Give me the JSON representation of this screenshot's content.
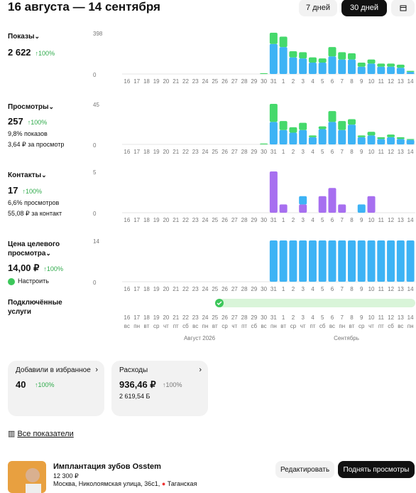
{
  "header": {
    "title": "16 августа — 14 сентября",
    "periods": [
      "7 дней",
      "30 дней"
    ]
  },
  "chart_data": [
    {
      "type": "bar",
      "stacked": true,
      "title": "Показы",
      "total": "2 622",
      "change": "100%",
      "notes": [],
      "categories": [
        "16",
        "17",
        "18",
        "19",
        "20",
        "21",
        "22",
        "23",
        "24",
        "25",
        "26",
        "27",
        "28",
        "29",
        "30",
        "31",
        "1",
        "2",
        "3",
        "4",
        "5",
        "6",
        "7",
        "8",
        "9",
        "10",
        "11",
        "12",
        "13",
        "14"
      ],
      "ylim": [
        0,
        398
      ],
      "yticks": [
        0,
        398
      ],
      "series": [
        {
          "color": "#3db3f5",
          "values": [
            null,
            null,
            null,
            null,
            null,
            null,
            null,
            null,
            null,
            null,
            null,
            null,
            null,
            null,
            0,
            290,
            260,
            160,
            150,
            110,
            110,
            170,
            140,
            140,
            70,
            100,
            70,
            70,
            60,
            20
          ]
        },
        {
          "color": "#45d96b",
          "values": [
            null,
            null,
            null,
            null,
            null,
            null,
            null,
            null,
            null,
            null,
            null,
            null,
            null,
            null,
            8,
            108,
            100,
            60,
            60,
            50,
            40,
            90,
            70,
            60,
            40,
            40,
            30,
            30,
            30,
            10
          ]
        }
      ]
    },
    {
      "type": "bar",
      "stacked": true,
      "title": "Просмотры",
      "total": "257",
      "change": "100%",
      "notes": [
        "9,8% показов",
        "3,64 ₽ за просмотр"
      ],
      "categories": [
        "16",
        "17",
        "18",
        "19",
        "20",
        "21",
        "22",
        "23",
        "24",
        "25",
        "26",
        "27",
        "28",
        "29",
        "30",
        "31",
        "1",
        "2",
        "3",
        "4",
        "5",
        "6",
        "7",
        "8",
        "9",
        "10",
        "11",
        "12",
        "13",
        "14"
      ],
      "ylim": [
        0,
        45
      ],
      "yticks": [
        0,
        45
      ],
      "series": [
        {
          "color": "#3db3f5",
          "values": [
            null,
            null,
            null,
            null,
            null,
            null,
            null,
            null,
            null,
            null,
            null,
            null,
            null,
            null,
            0,
            25,
            16,
            13,
            16,
            8,
            17,
            25,
            16,
            22,
            8,
            10,
            6,
            8,
            6,
            5
          ]
        },
        {
          "color": "#45d96b",
          "values": [
            null,
            null,
            null,
            null,
            null,
            null,
            null,
            null,
            null,
            null,
            null,
            null,
            null,
            null,
            1,
            20,
            10,
            6,
            8,
            2,
            3,
            12,
            10,
            6,
            2,
            4,
            2,
            3,
            2,
            1
          ]
        }
      ]
    },
    {
      "type": "bar",
      "stacked": true,
      "title": "Контакты",
      "total": "17",
      "change": "100%",
      "notes": [
        "6,6% просмотров",
        "55,08 ₽ за контакт"
      ],
      "categories": [
        "16",
        "17",
        "18",
        "19",
        "20",
        "21",
        "22",
        "23",
        "24",
        "25",
        "26",
        "27",
        "28",
        "29",
        "30",
        "31",
        "1",
        "2",
        "3",
        "4",
        "5",
        "6",
        "7",
        "8",
        "9",
        "10",
        "11",
        "12",
        "13",
        "14"
      ],
      "ylim": [
        0,
        5
      ],
      "yticks": [
        0,
        5
      ],
      "series": [
        {
          "color": "#a76ff0",
          "values": [
            null,
            null,
            null,
            null,
            null,
            null,
            null,
            null,
            null,
            null,
            null,
            null,
            null,
            null,
            null,
            5,
            1,
            null,
            1,
            null,
            2,
            3,
            1,
            null,
            null,
            2,
            null,
            null,
            null,
            null
          ]
        },
        {
          "color": "#3db3f5",
          "values": [
            null,
            null,
            null,
            null,
            null,
            null,
            null,
            null,
            null,
            null,
            null,
            null,
            null,
            null,
            null,
            null,
            null,
            null,
            1,
            null,
            null,
            null,
            null,
            null,
            1,
            null,
            null,
            null,
            null,
            null
          ]
        }
      ]
    },
    {
      "type": "bar",
      "stacked": true,
      "title": "Цена целевого просмотра",
      "total": "14,00 ₽",
      "change": "100%",
      "action": "Настроить",
      "categories": [
        "16",
        "17",
        "18",
        "19",
        "20",
        "21",
        "22",
        "23",
        "24",
        "25",
        "26",
        "27",
        "28",
        "29",
        "30",
        "31",
        "1",
        "2",
        "3",
        "4",
        "5",
        "6",
        "7",
        "8",
        "9",
        "10",
        "11",
        "12",
        "13",
        "14"
      ],
      "ylim": [
        0,
        14
      ],
      "yticks": [
        0,
        14
      ],
      "series": [
        {
          "color": "#3db3f5",
          "values": [
            null,
            null,
            null,
            null,
            null,
            null,
            null,
            null,
            null,
            null,
            null,
            null,
            null,
            null,
            null,
            14,
            14,
            14,
            14,
            14,
            14,
            14,
            14,
            14,
            14,
            14,
            14,
            14,
            14,
            14
          ]
        }
      ]
    }
  ],
  "services": {
    "title": "Подключённые услуги",
    "days": [
      "16",
      "17",
      "18",
      "19",
      "20",
      "21",
      "22",
      "23",
      "24",
      "25",
      "26",
      "27",
      "28",
      "29",
      "30",
      "31",
      "1",
      "2",
      "3",
      "4",
      "5",
      "6",
      "7",
      "8",
      "9",
      "10",
      "11",
      "12",
      "13",
      "14"
    ],
    "weekdays": [
      "вс",
      "пн",
      "вт",
      "ср",
      "чт",
      "пт",
      "сб",
      "вс",
      "пн",
      "вт",
      "ср",
      "чт",
      "пт",
      "сб",
      "вс",
      "пн",
      "вт",
      "ср",
      "чт",
      "пт",
      "сб",
      "вс",
      "пн",
      "вт",
      "ср",
      "чт",
      "пт",
      "сб",
      "вс",
      "пн"
    ],
    "months": [
      "Август 2026",
      "Сентябрь"
    ]
  },
  "cards": [
    {
      "title": "Добавили в избранное",
      "value": "40",
      "change": "100%"
    },
    {
      "title": "Расходы",
      "value": "936,46 ₽",
      "change": "100%",
      "note": "2 619,54 Б"
    }
  ],
  "all_metrics": "Все показатели",
  "listing": {
    "title": "Имплантация зубов Osstem",
    "price": "12 300 ₽",
    "address": "Москва, Николоямская улица, 36с1,",
    "metro": "Таганская",
    "actions": [
      "Редактировать",
      "Поднять просмотры"
    ]
  }
}
